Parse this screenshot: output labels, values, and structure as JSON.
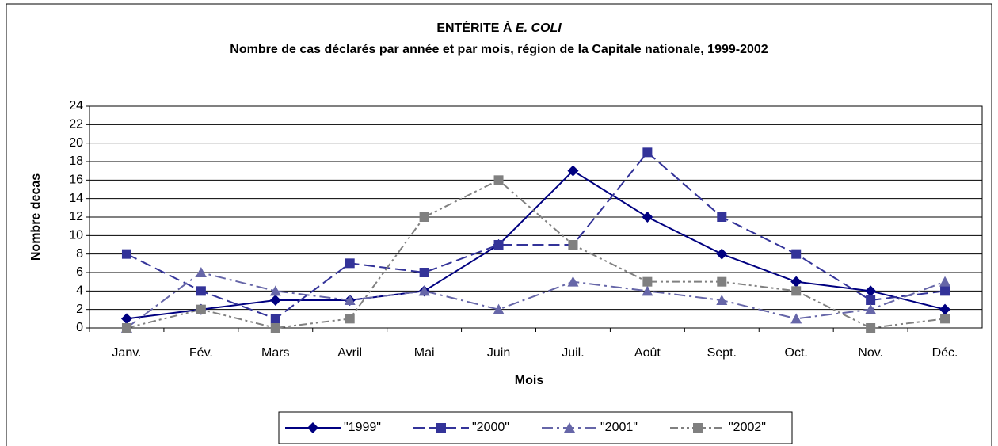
{
  "chart_data": {
    "type": "line",
    "title": [
      "ENTÉRITE À",
      "E. COLI"
    ],
    "subtitle": "Nombre de cas déclarés par année et par mois, région de la Capitale nationale, 1999-2002",
    "xlabel": "Mois",
    "ylabel": "Nombre decas",
    "categories": [
      "Janv.",
      "Fév.",
      "Mars",
      "Avril",
      "Mai",
      "Juin",
      "Juil.",
      "Août",
      "Sept.",
      "Oct.",
      "Nov.",
      "Déc."
    ],
    "series": [
      {
        "name": "\"1999\"",
        "color": "#000080",
        "marker": "diamond",
        "dash": "solid",
        "values": [
          1,
          2,
          3,
          3,
          4,
          9,
          17,
          12,
          8,
          5,
          4,
          2
        ]
      },
      {
        "name": "\"2000\"",
        "color": "#333399",
        "marker": "square",
        "dash": "dashed",
        "values": [
          8,
          4,
          1,
          7,
          6,
          9,
          9,
          19,
          12,
          8,
          3,
          4
        ]
      },
      {
        "name": "\"2001\"",
        "color": "#6666a8",
        "marker": "triangle",
        "dash": "dashdot",
        "values": [
          0,
          6,
          4,
          3,
          4,
          2,
          5,
          4,
          3,
          1,
          2,
          5
        ]
      },
      {
        "name": "\"2002\"",
        "color": "#808080",
        "marker": "square",
        "dash": "dashdotdot",
        "values": [
          0,
          2,
          0,
          1,
          12,
          16,
          9,
          5,
          5,
          4,
          0,
          1
        ]
      }
    ],
    "ylim": [
      0,
      24
    ],
    "yticks": [
      0,
      2,
      4,
      6,
      8,
      10,
      12,
      14,
      16,
      18,
      20,
      22,
      24
    ],
    "grid": true,
    "legend": "bottom"
  }
}
